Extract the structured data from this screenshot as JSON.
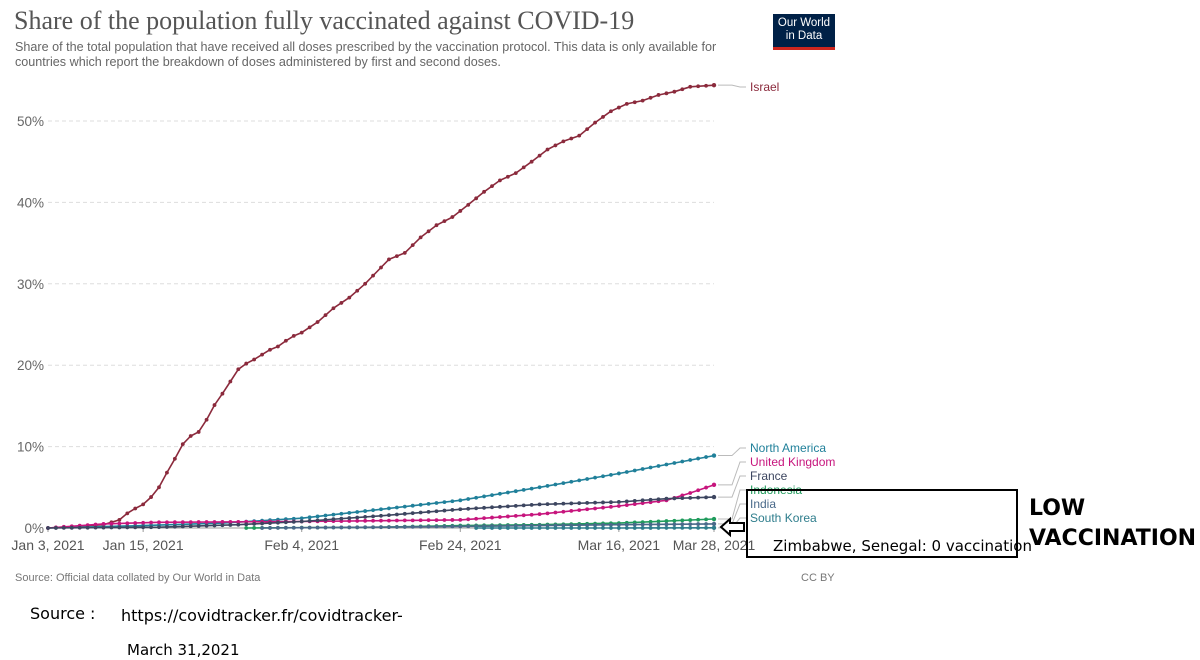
{
  "header": {
    "title": "Share of the population fully vaccinated against COVID-19",
    "subtitle": "Share of the total population that have received all doses prescribed by the vaccination protocol. This data is only available for countries which report the breakdown of doses administered by first and second doses.",
    "logo_line1": "Our World",
    "logo_line2": "in Data",
    "logo_color": "#002147",
    "logo_accent": "#ce261e"
  },
  "footer": {
    "source": "Source: Official data collated by Our World in Data",
    "license": "CC BY"
  },
  "annotation": {
    "caption": "Zimbabwe, Senegal: 0 vaccination",
    "label_line1": "LOW",
    "label_line2": "VACCINATION",
    "source_label": "Source :",
    "source_url": "https://covidtracker.fr/covidtracker-",
    "date": "March 31,2021"
  },
  "chart_data": {
    "type": "line",
    "title": "Share of the population fully vaccinated against COVID-19",
    "x_ticks": [
      "Jan 3, 2021",
      "Jan 15, 2021",
      "Feb 4, 2021",
      "Feb 24, 2021",
      "Mar 16, 2021",
      "Mar 28, 2021"
    ],
    "x_range": [
      "Jan 3, 2021",
      "Mar 28, 2021"
    ],
    "y_ticks": [
      "0%",
      "10%",
      "20%",
      "30%",
      "40%",
      "50%"
    ],
    "ylim": [
      0,
      55
    ],
    "grid": "horizontal dashed",
    "series": [
      {
        "name": "Israel",
        "color": "#8b2a3c",
        "points": [
          [
            "Jan 3, 2021",
            0
          ],
          [
            "Jan 10, 2021",
            0.4
          ],
          [
            "Jan 12, 2021",
            1.0
          ],
          [
            "Jan 13, 2021",
            1.8
          ],
          [
            "Jan 14, 2021",
            2.4
          ],
          [
            "Jan 15, 2021",
            2.9
          ],
          [
            "Jan 16, 2021",
            3.8
          ],
          [
            "Jan 17, 2021",
            5.0
          ],
          [
            "Jan 18, 2021",
            6.8
          ],
          [
            "Jan 19, 2021",
            8.5
          ],
          [
            "Jan 20, 2021",
            10.3
          ],
          [
            "Jan 21, 2021",
            11.3
          ],
          [
            "Jan 22, 2021",
            11.8
          ],
          [
            "Jan 23, 2021",
            13.3
          ],
          [
            "Jan 24, 2021",
            15.1
          ],
          [
            "Jan 25, 2021",
            16.5
          ],
          [
            "Jan 26, 2021",
            18.0
          ],
          [
            "Jan 27, 2021",
            19.5
          ],
          [
            "Jan 28, 2021",
            20.2
          ],
          [
            "Jan 29, 2021",
            20.7
          ],
          [
            "Jan 30, 2021",
            21.3
          ],
          [
            "Jan 31, 2021",
            21.9
          ],
          [
            "Feb 1, 2021",
            22.3
          ],
          [
            "Feb 2, 2021",
            23.0
          ],
          [
            "Feb 3, 2021",
            23.6
          ],
          [
            "Feb 4, 2021",
            24.0
          ],
          [
            "Feb 6, 2021",
            25.3
          ],
          [
            "Feb 8, 2021",
            27.0
          ],
          [
            "Feb 10, 2021",
            28.3
          ],
          [
            "Feb 12, 2021",
            30.0
          ],
          [
            "Feb 14, 2021",
            32.0
          ],
          [
            "Feb 15, 2021",
            33.0
          ],
          [
            "Feb 17, 2021",
            33.8
          ],
          [
            "Feb 19, 2021",
            35.7
          ],
          [
            "Feb 21, 2021",
            37.2
          ],
          [
            "Feb 23, 2021",
            38.2
          ],
          [
            "Feb 25, 2021",
            39.7
          ],
          [
            "Feb 27, 2021",
            41.3
          ],
          [
            "Mar 1, 2021",
            42.7
          ],
          [
            "Mar 3, 2021",
            43.6
          ],
          [
            "Mar 5, 2021",
            45.0
          ],
          [
            "Mar 7, 2021",
            46.5
          ],
          [
            "Mar 9, 2021",
            47.5
          ],
          [
            "Mar 11, 2021",
            48.2
          ],
          [
            "Mar 13, 2021",
            49.8
          ],
          [
            "Mar 15, 2021",
            51.2
          ],
          [
            "Mar 17, 2021",
            52.1
          ],
          [
            "Mar 19, 2021",
            52.5
          ],
          [
            "Mar 21, 2021",
            53.2
          ],
          [
            "Mar 23, 2021",
            53.6
          ],
          [
            "Mar 25, 2021",
            54.2
          ],
          [
            "Mar 28, 2021",
            54.4
          ]
        ]
      },
      {
        "name": "North America",
        "color": "#20809a",
        "points": [
          [
            "Jan 3, 2021",
            0
          ],
          [
            "Jan 15, 2021",
            0.3
          ],
          [
            "Jan 25, 2021",
            0.6
          ],
          [
            "Feb 4, 2021",
            1.2
          ],
          [
            "Feb 14, 2021",
            2.3
          ],
          [
            "Feb 24, 2021",
            3.4
          ],
          [
            "Mar 6, 2021",
            5.0
          ],
          [
            "Mar 16, 2021",
            6.7
          ],
          [
            "Mar 28, 2021",
            8.9
          ]
        ]
      },
      {
        "name": "United Kingdom",
        "color": "#c7157d",
        "points": [
          [
            "Jan 3, 2021",
            0
          ],
          [
            "Jan 10, 2021",
            0.5
          ],
          [
            "Jan 17, 2021",
            0.7
          ],
          [
            "Feb 4, 2021",
            0.8
          ],
          [
            "Feb 24, 2021",
            1.0
          ],
          [
            "Mar 6, 2021",
            1.7
          ],
          [
            "Mar 16, 2021",
            2.7
          ],
          [
            "Mar 22, 2021",
            3.4
          ],
          [
            "Mar 25, 2021",
            4.3
          ],
          [
            "Mar 28, 2021",
            5.3
          ]
        ]
      },
      {
        "name": "France",
        "color": "#3d4660",
        "points": [
          [
            "Jan 3, 2021",
            0
          ],
          [
            "Jan 17, 2021",
            0.1
          ],
          [
            "Jan 27, 2021",
            0.4
          ],
          [
            "Feb 4, 2021",
            0.8
          ],
          [
            "Feb 14, 2021",
            1.5
          ],
          [
            "Feb 24, 2021",
            2.3
          ],
          [
            "Mar 6, 2021",
            2.9
          ],
          [
            "Mar 16, 2021",
            3.2
          ],
          [
            "Mar 22, 2021",
            3.6
          ],
          [
            "Mar 28, 2021",
            3.8
          ]
        ]
      },
      {
        "name": "Indonesia",
        "color": "#1f9b5c",
        "points": [
          [
            "Jan 28, 2021",
            0
          ],
          [
            "Feb 14, 2021",
            0.1
          ],
          [
            "Feb 24, 2021",
            0.3
          ],
          [
            "Mar 6, 2021",
            0.4
          ],
          [
            "Mar 16, 2021",
            0.6
          ],
          [
            "Mar 28, 2021",
            1.1
          ]
        ]
      },
      {
        "name": "India",
        "color": "#4a6a8a",
        "points": [
          [
            "Jan 30, 2021",
            0
          ],
          [
            "Feb 14, 2021",
            0.1
          ],
          [
            "Feb 24, 2021",
            0.2
          ],
          [
            "Mar 6, 2021",
            0.3
          ],
          [
            "Mar 16, 2021",
            0.4
          ],
          [
            "Mar 28, 2021",
            0.5
          ]
        ]
      },
      {
        "name": "South Korea",
        "color": "#2e7d8c",
        "points": [
          [
            "Feb 26, 2021",
            0
          ],
          [
            "Mar 16, 2021",
            0
          ],
          [
            "Mar 28, 2021",
            0.02
          ]
        ]
      }
    ]
  }
}
